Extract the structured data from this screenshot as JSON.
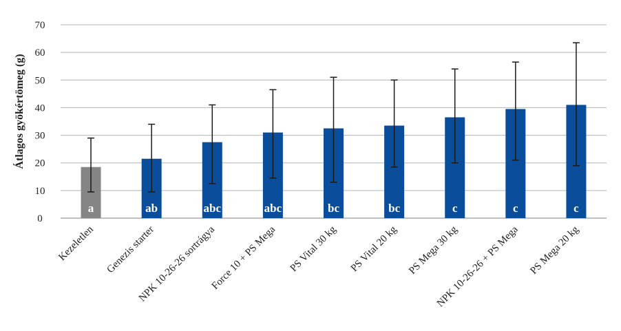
{
  "chart_data": {
    "type": "bar",
    "title": "",
    "xlabel": "",
    "ylabel": "Átlagos gyökértömeg (g)",
    "ylim": [
      0,
      70
    ],
    "yticks": [
      0,
      10,
      20,
      30,
      40,
      50,
      60,
      70
    ],
    "grid": true,
    "legend": "none",
    "categories": [
      "Kezeletlen",
      "Genezis starter",
      "NPK 10-26-26 sortrágya",
      "Force 10 + PS Mega",
      "PS Vital 30 kg",
      "PS Vital 20 kg",
      "PS Mega 30 kg",
      "NPK 10-26-26 + PS Mega",
      "PS Mega 20 kg"
    ],
    "values": [
      18.5,
      21.5,
      27.5,
      31,
      32.5,
      33.5,
      36.5,
      39.5,
      41
    ],
    "error_low": [
      9.5,
      9.5,
      12.5,
      14.5,
      13,
      18.5,
      20,
      21,
      19
    ],
    "error_high": [
      29,
      34,
      41,
      46.5,
      51,
      50,
      54,
      56.5,
      63.5
    ],
    "group_labels": [
      "a",
      "ab",
      "abc",
      "abc",
      "bc",
      "bc",
      "c",
      "c",
      "c"
    ],
    "bar_colors": [
      "#858585",
      "#0a4e9b",
      "#0a4e9b",
      "#0a4e9b",
      "#0a4e9b",
      "#0a4e9b",
      "#0a4e9b",
      "#0a4e9b",
      "#0a4e9b"
    ],
    "colors": {
      "grid": "#b3b3b3",
      "axis": "#7f7f7f",
      "error_bar": "#1a1a1a",
      "label_text": "#ffffff"
    }
  }
}
